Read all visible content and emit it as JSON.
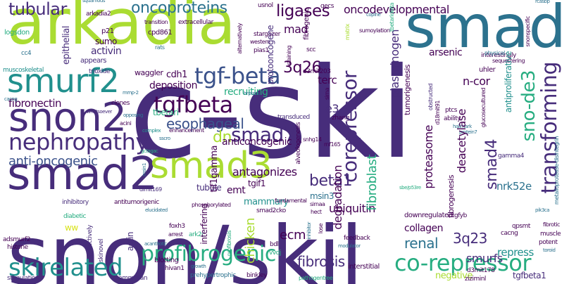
{
  "palette": {
    "purple": "#440154",
    "indigo": "#472d7b",
    "blue": "#3b528b",
    "teal": "#2c728e",
    "cyan": "#21908d",
    "green": "#27ad81",
    "lime": "#5dc863",
    "yellow": "#aadc32",
    "lightyellow": "#d8e219"
  },
  "words": {
    "c_ski": "c-ski",
    "snon_skil": "snon/skil",
    "arkadia": "arkadia",
    "smad": "smad",
    "smad2": "smad2",
    "snon2": "snon2",
    "smurf2": "smurf2",
    "smad3": "smad3",
    "tgf_beta": "tgf-beta",
    "tgfbeta": "tgfbeta",
    "nephropathy": "nephropathy",
    "smad7": "smad7",
    "corepressor": "corepressor",
    "transforming": "transforming",
    "sno_de3": "sno-de3",
    "co_repressor": "co-repressor",
    "skirelated": "skirelated",
    "profibrogenic": "profibrogenic",
    "tubular": "tubular",
    "oncoproteins": "oncoproteins",
    "ligases": "ligases",
    "oncodevelopmental": "oncodevelopmental",
    "mad": "mad",
    "beta1": "beta1",
    "smad4": "smad4",
    "fibrosis": "fibrosis",
    "anti_oncogenic": "anti-oncogenic",
    "esophageal": "esophageal",
    "fibronectin": "fibronectin",
    "antagonizes": "antagonizes",
    "ubiquitin": "ubiquitin",
    "degradation": "degradation",
    "fibroblast": "fibroblast",
    "smurfs": "smurfs",
    "renal": "renal",
    "collagen": "collagen",
    "chicken": "chicken",
    "plasminogen": "plasminogen",
    "deacetylase": "deacetylase",
    "proteasome": "proteasome",
    "n_cor": "n-cor",
    "terc": "terc",
    "q26": "3q26",
    "q23": "3q23",
    "e3": "e3",
    "ecm": "ecm",
    "dn": "dn",
    "emt": "emt",
    "tif1gamma": "tif1gamma",
    "anticoncogenic": "anticoncogenic",
    "recruiting": "recruiting",
    "deposition": "deposition",
    "cdh1": "cdh1",
    "arsenic": "arsenic",
    "activin": "activin",
    "sumo": "sumo",
    "epithelial": "epithelial",
    "nrk52e": "nrk52e",
    "tgfbeta1": "tgfbeta1",
    "repress": "repress",
    "negative": "negative",
    "mammary": "mammary",
    "tgif1": "tgif1",
    "msin3": "msin3",
    "tubule": "tubule",
    "interfering": "interfering",
    "actin": "actin",
    "tbetari": "tbetari",
    "antiproliferative": "antiproliferative",
    "tumorigenesis": "tumorigenesis",
    "fibrogenesis": "fibrogenesis",
    "fibrogenic": "fibrogenic",
    "protooncogene": "protooncogene",
    "p21": "p21",
    "cpd861": "cpd861",
    "logsdon": "logsdon",
    "cc4": "cc4",
    "appears": "appears",
    "rats": "rats",
    "pias1": "pias1",
    "scc": "scc",
    "interestingly": "interestingly",
    "physical": "physical",
    "sequestering": "sequestering",
    "uhler": "uhler",
    "d3mit203": "d3mit203",
    "waggler": "waggler",
    "trioxide": "trioxide",
    "muscoskeletal": "muscoskeletal",
    "mmp_2": "mmp-2",
    "cacng": "cacng",
    "clones": "clones",
    "opposing": "opposing",
    "whatsoever": "whatsoever",
    "acini": "acini",
    "complex": "complex",
    "enhancement": "enhancement",
    "transduced": "transduced",
    "zhang": "zhang",
    "snhg14": "snhg14",
    "rnf165": "rnf165",
    "ptcs": "ptcs",
    "ability": "ability",
    "d18mit91": "d18mit91",
    "glucosecultured": "glucosecultured",
    "hallmark": "hallmark",
    "protein7": "protein7",
    "gamma4": "gamma4",
    "dlmit169": "dlmit169",
    "inhibitory": "inhibitory",
    "antitumorigenic": "antitumorigenic",
    "phosphorylated": "phosphorylated",
    "fundamental": "fundamental",
    "sirnaa": "sirnaa",
    "hect": "hect",
    "smad2cko": "smad2cko",
    "downregulated": "downregulated",
    "diabetic": "diabetic",
    "ww": "ww",
    "adsmurf2": "adsmurf2",
    "histone": "histone",
    "foxh3": "foxh3",
    "arrest": "arrest",
    "ark2c": "ark2c",
    "collectively": "collectively",
    "skinovel": "skinovel",
    "blotting": "blotting",
    "hivan1": "hivan1",
    "prehypertrophic": "prehypertrophic",
    "binkley": "binkley",
    "mammalian": "mammalian",
    "stimulation": "stimulation",
    "pathogentree": "pathogentree",
    "interstitial": "interstitial",
    "d3mit178": "d3mit178",
    "ziziminl": "ziziminl",
    "bdl": "bdl",
    "vvdj": "vvdj",
    "feedback": "feedback",
    "modulator": "modulator",
    "tgfyb": "tgfyb",
    "qpsmt": "qpsmt",
    "muscle": "muscle",
    "potent": "potent",
    "toroid": "toroid",
    "fibrotic": "fibrotic",
    "pik3ca": "pik3ca",
    "profibrosis": "profibrosis",
    "growth": "growth",
    "acanthotic": "acanthotic",
    "elucidated": "elucidated",
    "inhibitor": "inhibitor",
    "lose": "lose",
    "sirna": "sirna",
    "extracellular": "extracellular",
    "transition": "transition",
    "stargazer": "stargazer",
    "western": "western",
    "usnol": "usnol",
    "qecs": "qecs",
    "copine": "copine",
    "squamous": "squamous",
    "arkadia2": "arkadia2",
    "matrix": "matrix",
    "sumoylation": "sumoylation",
    "tbetaridelta": "tbetaridelta",
    "snonspecific": "snonspecific",
    "rcasbp": "rcasbp",
    "obstructed": "obstructed",
    "alveologenesis": "alveologenesis",
    "staining": "staining",
    "alternatively": "alternatively",
    "hrptecs": "hrptecs",
    "sscro": "sscro",
    "metallo": "metalloprotease-disintegrin",
    "sbp": "sbe/p53re",
    "msin1": "msin1",
    "gctagac": "gctagac"
  }
}
